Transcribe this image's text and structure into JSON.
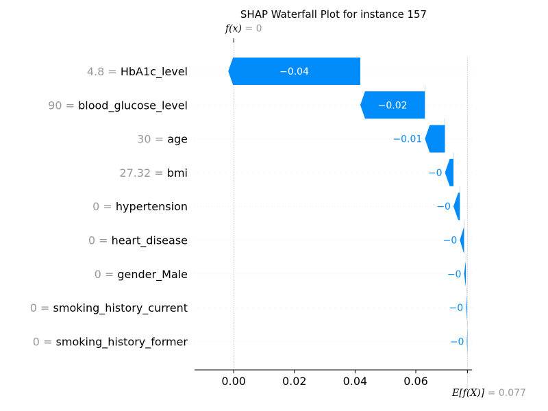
{
  "chart_data": {
    "type": "waterfall",
    "title": "SHAP Waterfall Plot for instance 157",
    "fx_label": "f(x)",
    "fx_value": "0",
    "base_label": "E[f(X)]",
    "base_value": "0.077",
    "base_value_num": 0.077,
    "final_value_num": 0,
    "xlim": [
      -0.0129,
      0.0785
    ],
    "ticks": [
      0.0,
      0.02,
      0.04,
      0.06
    ],
    "tick_labels": [
      "0.00",
      "0.02",
      "0.04",
      "0.06"
    ],
    "features": [
      {
        "value": "4.8",
        "name": "HbA1c_level",
        "shap": -0.0435,
        "label": "−0.04"
      },
      {
        "value": "90",
        "name": "blood_glucose_level",
        "shap": -0.0213,
        "label": "−0.02"
      },
      {
        "value": "30",
        "name": "age",
        "shap": -0.0066,
        "label": "−0.01"
      },
      {
        "value": "27.32",
        "name": "bmi",
        "shap": -0.0028,
        "label": "−0"
      },
      {
        "value": "0",
        "name": "hypertension",
        "shap": -0.0021,
        "label": "−0"
      },
      {
        "value": "0",
        "name": "heart_disease",
        "shap": -0.0014,
        "label": "−0"
      },
      {
        "value": "0",
        "name": "gender_Male",
        "shap": -0.0006,
        "label": "−0"
      },
      {
        "value": "0",
        "name": "smoking_history_current",
        "shap": -0.0003,
        "label": "−0"
      },
      {
        "value": "0",
        "name": "smoking_history_former",
        "shap": -0.0002,
        "label": "−0"
      }
    ],
    "colors": {
      "negative": "#008bfb",
      "axis": "#000000",
      "grid": "#cccccc",
      "muted": "#999999"
    }
  }
}
